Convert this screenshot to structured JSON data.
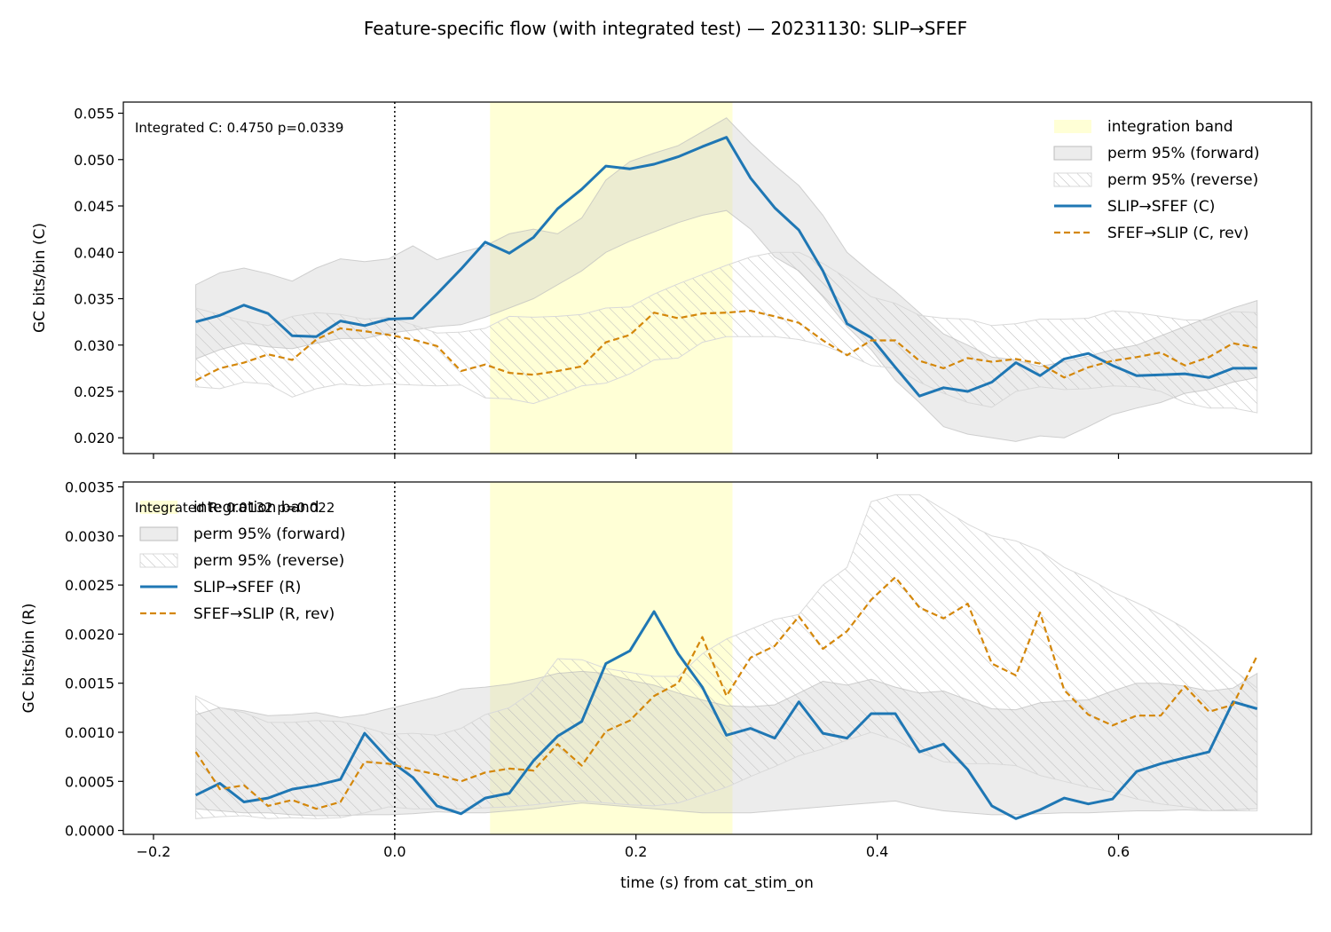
{
  "figure": {
    "title": "Feature-specific flow (with integrated test) — 20231130: SLIP→SFEF",
    "xlabel": "time (s) from cat_stim_on"
  },
  "colors": {
    "forward": "#1f77b4",
    "reverse": "#d4870a",
    "band": "#ffffcc",
    "perm_forward": "#c8c8c8",
    "perm_reverse_hatch": "#bbbbbb"
  },
  "chart_data": [
    {
      "type": "line",
      "ylabel": "GC bits/bin (C)",
      "annotation": "Integrated C: 0.4750  p=0.0339",
      "xlim": [
        -0.225,
        0.76
      ],
      "ylim": [
        0.0183,
        0.0562
      ],
      "xticks": [
        -0.2,
        0.0,
        0.2,
        0.4,
        0.6
      ],
      "xtick_labels": [
        "−0.2",
        "0.0",
        "0.2",
        "0.4",
        "0.6"
      ],
      "yticks": [
        0.02,
        0.025,
        0.03,
        0.035,
        0.04,
        0.045,
        0.05,
        0.055
      ],
      "ytick_labels": [
        "0.020",
        "0.025",
        "0.030",
        "0.035",
        "0.040",
        "0.045",
        "0.050",
        "0.055"
      ],
      "vline_x": 0.0,
      "integration_band": [
        0.079,
        0.28
      ],
      "legend": {
        "placement": "upper right",
        "entries": {
          "band": "integration band",
          "perm_forward": "perm 95% (forward)",
          "perm_reverse": "perm 95% (reverse)",
          "forward": "SLIP→SFEF (C)",
          "reverse": "SFEF→SLIP (C, rev)"
        }
      },
      "x": [
        -0.165,
        -0.145,
        -0.125,
        -0.105,
        -0.085,
        -0.065,
        -0.045,
        -0.025,
        -0.005,
        0.015,
        0.035,
        0.055,
        0.075,
        0.095,
        0.115,
        0.135,
        0.155,
        0.175,
        0.195,
        0.215,
        0.235,
        0.255,
        0.275,
        0.295,
        0.315,
        0.335,
        0.355,
        0.375,
        0.395,
        0.415,
        0.435,
        0.455,
        0.475,
        0.495,
        0.515,
        0.535,
        0.555,
        0.575,
        0.595,
        0.615,
        0.635,
        0.655,
        0.675,
        0.695,
        0.715
      ],
      "series": [
        {
          "key": "forward",
          "values": [
            0.0325,
            0.0332,
            0.0343,
            0.0334,
            0.031,
            0.0309,
            0.0326,
            0.0321,
            0.0328,
            0.0329,
            0.0355,
            0.0382,
            0.0411,
            0.0399,
            0.0416,
            0.0447,
            0.0468,
            0.0493,
            0.049,
            0.0495,
            0.0503,
            0.0514,
            0.0524,
            0.048,
            0.0448,
            0.0424,
            0.038,
            0.0323,
            0.0308,
            0.0276,
            0.0245,
            0.0254,
            0.025,
            0.026,
            0.0281,
            0.0267,
            0.0285,
            0.0291,
            0.0278,
            0.0267,
            0.0268,
            0.0269,
            0.0265,
            0.0275,
            0.0275
          ]
        },
        {
          "key": "reverse",
          "values": [
            0.0262,
            0.0275,
            0.0281,
            0.029,
            0.0284,
            0.0306,
            0.0318,
            0.0315,
            0.0311,
            0.0306,
            0.0299,
            0.0272,
            0.0279,
            0.027,
            0.0268,
            0.0272,
            0.0277,
            0.0303,
            0.0311,
            0.0335,
            0.0329,
            0.0334,
            0.0335,
            0.0337,
            0.0331,
            0.0324,
            0.0305,
            0.0289,
            0.0305,
            0.0305,
            0.0283,
            0.0275,
            0.0286,
            0.0282,
            0.0285,
            0.028,
            0.0265,
            0.0276,
            0.0283,
            0.0287,
            0.0292,
            0.0278,
            0.0287,
            0.0302,
            0.0297
          ]
        }
      ],
      "perm_forward": {
        "lower": [
          0.0285,
          0.0295,
          0.0302,
          0.0298,
          0.0296,
          0.0302,
          0.0307,
          0.0307,
          0.0313,
          0.0316,
          0.032,
          0.0322,
          0.033,
          0.034,
          0.035,
          0.0365,
          0.038,
          0.04,
          0.0412,
          0.0422,
          0.0432,
          0.044,
          0.0445,
          0.0425,
          0.0395,
          0.038,
          0.0352,
          0.032,
          0.0295,
          0.0262,
          0.0238,
          0.0212,
          0.0204,
          0.02,
          0.0196,
          0.0202,
          0.02,
          0.0212,
          0.0225,
          0.0232,
          0.0238,
          0.0248,
          0.0252,
          0.026,
          0.0265
        ],
        "upper": [
          0.0365,
          0.0378,
          0.0383,
          0.0377,
          0.0369,
          0.0383,
          0.0393,
          0.039,
          0.0393,
          0.0407,
          0.0392,
          0.04,
          0.0407,
          0.042,
          0.0425,
          0.042,
          0.0437,
          0.0478,
          0.0498,
          0.0507,
          0.0515,
          0.053,
          0.0545,
          0.0518,
          0.0494,
          0.0472,
          0.044,
          0.04,
          0.0378,
          0.0358,
          0.0335,
          0.0312,
          0.03,
          0.0287,
          0.0284,
          0.0277,
          0.0282,
          0.0288,
          0.0295,
          0.03,
          0.031,
          0.032,
          0.033,
          0.034,
          0.0348
        ]
      },
      "perm_reverse": {
        "lower": [
          0.0255,
          0.0253,
          0.026,
          0.0258,
          0.0244,
          0.0253,
          0.0258,
          0.0256,
          0.0258,
          0.0257,
          0.0256,
          0.0257,
          0.0243,
          0.0242,
          0.0237,
          0.0246,
          0.0256,
          0.0259,
          0.0269,
          0.0284,
          0.0286,
          0.0303,
          0.0309,
          0.0309,
          0.0309,
          0.0306,
          0.03,
          0.029,
          0.0278,
          0.0275,
          0.026,
          0.0248,
          0.0238,
          0.0233,
          0.025,
          0.0255,
          0.0252,
          0.0253,
          0.0256,
          0.0255,
          0.025,
          0.0238,
          0.0232,
          0.0232,
          0.0227
        ],
        "upper": [
          0.034,
          0.0333,
          0.0326,
          0.0321,
          0.0331,
          0.0335,
          0.0333,
          0.0328,
          0.033,
          0.0322,
          0.0313,
          0.0314,
          0.0318,
          0.0331,
          0.033,
          0.0331,
          0.0333,
          0.034,
          0.0341,
          0.0355,
          0.0366,
          0.0376,
          0.0386,
          0.0395,
          0.04,
          0.04,
          0.0388,
          0.0372,
          0.0352,
          0.0345,
          0.0332,
          0.0329,
          0.0328,
          0.0321,
          0.0323,
          0.0328,
          0.0328,
          0.0329,
          0.0337,
          0.0335,
          0.0331,
          0.0327,
          0.0327,
          0.0336,
          0.0335
        ]
      }
    },
    {
      "type": "line",
      "ylabel": "GC bits/bin (R)",
      "annotation": "Integrated R: 0.0132  p=0.022",
      "xlim": [
        -0.225,
        0.76
      ],
      "ylim": [
        -4e-05,
        0.00355
      ],
      "xticks": [
        -0.2,
        0.0,
        0.2,
        0.4,
        0.6
      ],
      "xtick_labels": [
        "−0.2",
        "0.0",
        "0.2",
        "0.4",
        "0.6"
      ],
      "yticks": [
        0.0,
        0.0005,
        0.001,
        0.0015,
        0.002,
        0.0025,
        0.003,
        0.0035
      ],
      "ytick_labels": [
        "0.0000",
        "0.0005",
        "0.0010",
        "0.0015",
        "0.0020",
        "0.0025",
        "0.0030",
        "0.0035"
      ],
      "vline_x": 0.0,
      "integration_band": [
        0.079,
        0.28
      ],
      "legend": {
        "placement": "upper left",
        "entries": {
          "band": "integration band",
          "perm_forward": "perm 95% (forward)",
          "perm_reverse": "perm 95% (reverse)",
          "forward": "SLIP→SFEF (R)",
          "reverse": "SFEF→SLIP (R, rev)"
        }
      },
      "x": [
        -0.165,
        -0.145,
        -0.125,
        -0.105,
        -0.085,
        -0.065,
        -0.045,
        -0.025,
        -0.005,
        0.015,
        0.035,
        0.055,
        0.075,
        0.095,
        0.115,
        0.135,
        0.155,
        0.175,
        0.195,
        0.215,
        0.235,
        0.255,
        0.275,
        0.295,
        0.315,
        0.335,
        0.355,
        0.375,
        0.395,
        0.415,
        0.435,
        0.455,
        0.475,
        0.495,
        0.515,
        0.535,
        0.555,
        0.575,
        0.595,
        0.615,
        0.635,
        0.655,
        0.675,
        0.695,
        0.715
      ],
      "series": [
        {
          "key": "forward",
          "values": [
            0.00036,
            0.00048,
            0.00029,
            0.00033,
            0.00042,
            0.00046,
            0.00052,
            0.00099,
            0.00072,
            0.00054,
            0.00025,
            0.00017,
            0.00033,
            0.00038,
            0.00071,
            0.00096,
            0.00111,
            0.0017,
            0.00183,
            0.00223,
            0.0018,
            0.00146,
            0.00097,
            0.00104,
            0.00094,
            0.00131,
            0.00099,
            0.00094,
            0.00119,
            0.00119,
            0.0008,
            0.00088,
            0.00062,
            0.00025,
            0.00012,
            0.00021,
            0.00033,
            0.00027,
            0.00032,
            0.0006,
            0.00068,
            0.00074,
            0.0008,
            0.00131,
            0.00124
          ]
        },
        {
          "key": "reverse",
          "values": [
            0.0008,
            0.00042,
            0.00046,
            0.00025,
            0.00031,
            0.00022,
            0.00029,
            0.0007,
            0.00068,
            0.00062,
            0.00057,
            0.0005,
            0.00059,
            0.00063,
            0.00061,
            0.00088,
            0.00066,
            0.00101,
            0.00112,
            0.00137,
            0.0015,
            0.00197,
            0.00137,
            0.00176,
            0.00188,
            0.00218,
            0.00185,
            0.00203,
            0.00235,
            0.00258,
            0.00227,
            0.00216,
            0.00231,
            0.0017,
            0.00158,
            0.00222,
            0.00143,
            0.00118,
            0.00107,
            0.00117,
            0.00117,
            0.00147,
            0.00121,
            0.00128,
            0.00178
          ]
        }
      ],
      "perm_forward": {
        "lower": [
          0.00022,
          0.0002,
          0.00018,
          0.00018,
          0.00016,
          0.00015,
          0.00015,
          0.00016,
          0.00016,
          0.00017,
          0.00019,
          0.00018,
          0.00018,
          0.0002,
          0.00022,
          0.00025,
          0.00028,
          0.00026,
          0.00024,
          0.00022,
          0.0002,
          0.00018,
          0.00018,
          0.00018,
          0.0002,
          0.00022,
          0.00024,
          0.00026,
          0.00028,
          0.0003,
          0.00024,
          0.0002,
          0.00018,
          0.00016,
          0.00016,
          0.00017,
          0.00018,
          0.00018,
          0.00019,
          0.0002,
          0.0002,
          0.00021,
          0.0002,
          0.00021,
          0.00022
        ],
        "upper": [
          0.00118,
          0.00125,
          0.00122,
          0.00117,
          0.00118,
          0.0012,
          0.00115,
          0.00118,
          0.00124,
          0.0013,
          0.00136,
          0.00144,
          0.00146,
          0.00149,
          0.00154,
          0.0016,
          0.00162,
          0.0016,
          0.00153,
          0.00148,
          0.0014,
          0.00133,
          0.00127,
          0.00126,
          0.00128,
          0.0014,
          0.00152,
          0.00148,
          0.00154,
          0.00146,
          0.0014,
          0.00142,
          0.00133,
          0.00124,
          0.00123,
          0.0013,
          0.00132,
          0.00133,
          0.00142,
          0.0015,
          0.0015,
          0.00147,
          0.00142,
          0.00145,
          0.0016
        ]
      },
      "perm_reverse": {
        "lower": [
          0.00012,
          0.00014,
          0.00015,
          0.00012,
          0.00013,
          0.00012,
          0.00013,
          0.00018,
          0.00024,
          0.00022,
          0.00022,
          0.00022,
          0.00023,
          0.00024,
          0.00026,
          0.00029,
          0.0003,
          0.00028,
          0.00026,
          0.00025,
          0.00028,
          0.00036,
          0.00044,
          0.00055,
          0.00065,
          0.00076,
          0.00083,
          0.00092,
          0.001,
          0.00092,
          0.0008,
          0.0007,
          0.00068,
          0.00068,
          0.00066,
          0.00056,
          0.0005,
          0.00044,
          0.00039,
          0.00032,
          0.00027,
          0.00024,
          0.0002,
          0.0002,
          0.0002
        ],
        "upper": [
          0.00137,
          0.00125,
          0.0012,
          0.0011,
          0.0011,
          0.00112,
          0.00111,
          0.00105,
          0.00098,
          0.00099,
          0.00097,
          0.00104,
          0.00118,
          0.00125,
          0.00142,
          0.00175,
          0.00174,
          0.00165,
          0.00161,
          0.00157,
          0.00157,
          0.0018,
          0.00195,
          0.00205,
          0.00215,
          0.0022,
          0.0025,
          0.00268,
          0.00335,
          0.00342,
          0.00342,
          0.00327,
          0.00312,
          0.003,
          0.00295,
          0.00285,
          0.00268,
          0.00257,
          0.00243,
          0.00232,
          0.0022,
          0.00206,
          0.00186,
          0.00164,
          0.00145
        ]
      }
    }
  ]
}
